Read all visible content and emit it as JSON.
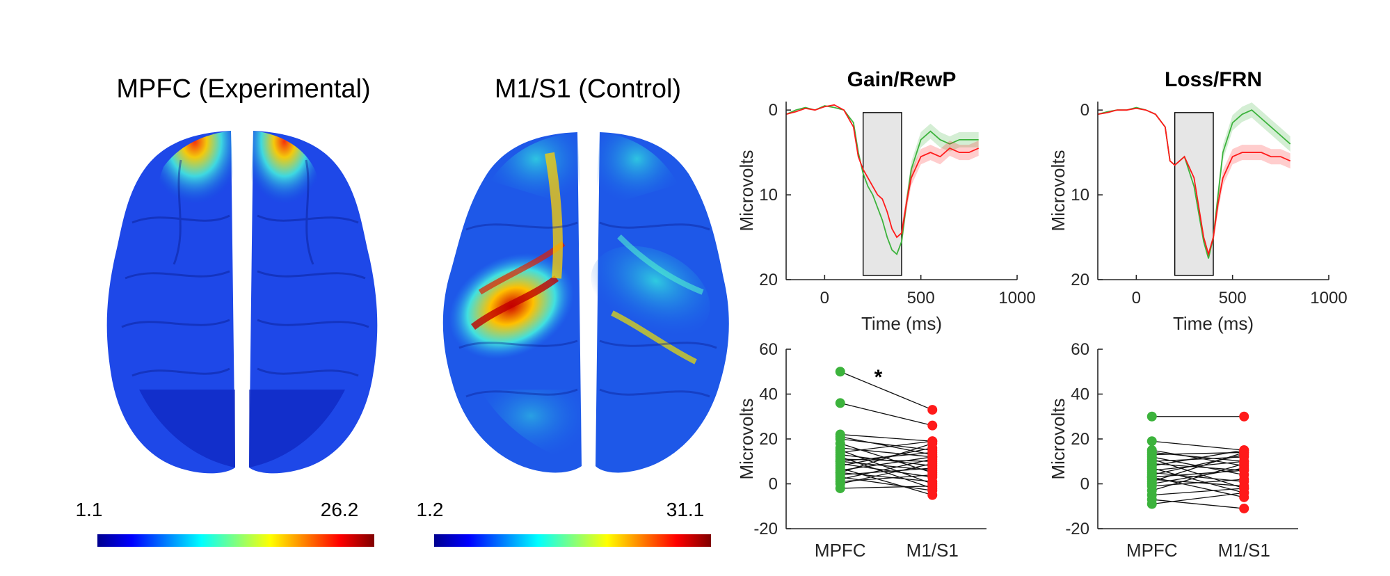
{
  "colors": {
    "mpfc": "#3cb33c",
    "m1s1": "#ff1a1a",
    "axis": "#262626",
    "window": "#e6e6e6"
  },
  "brain_maps": [
    {
      "title": "MPFC (Experimental)",
      "cmin": "1.1",
      "cmax": "26.2",
      "hotspot": "frontal-midline"
    },
    {
      "title": "M1/S1 (Control)",
      "cmin": "1.2",
      "cmax": "31.1",
      "hotspot": "left-central-sulcus"
    }
  ],
  "chart_data": [
    {
      "id": "gain_erp",
      "type": "line",
      "title": "Gain/RewP",
      "xlabel": "Time (ms)",
      "ylabel": "Microvolts",
      "xlim": [
        -200,
        1000
      ],
      "ylim": [
        20,
        -1
      ],
      "xticks": [
        0,
        500,
        1000
      ],
      "yticks": [
        0,
        10,
        20
      ],
      "window": [
        200,
        400
      ],
      "series": [
        {
          "name": "MPFC",
          "color": "#3cb33c",
          "x": [
            -200,
            -150,
            -100,
            -50,
            0,
            50,
            100,
            150,
            175,
            200,
            225,
            250,
            275,
            300,
            325,
            350,
            375,
            400,
            425,
            450,
            500,
            550,
            600,
            650,
            700,
            750,
            800
          ],
          "y": [
            0.5,
            0,
            -0.3,
            0,
            -0.5,
            -0.3,
            0,
            1.5,
            5,
            7.5,
            9,
            10,
            11.5,
            13,
            15,
            16.5,
            17,
            15.5,
            11,
            7,
            3.5,
            2.5,
            3.5,
            4,
            3.5,
            3.5,
            3.5
          ]
        },
        {
          "name": "M1/S1",
          "color": "#ff1a1a",
          "x": [
            -200,
            -150,
            -100,
            -50,
            0,
            50,
            100,
            150,
            175,
            200,
            225,
            250,
            275,
            300,
            325,
            350,
            375,
            400,
            425,
            450,
            500,
            550,
            600,
            650,
            700,
            750,
            800
          ],
          "y": [
            0.5,
            0.2,
            -0.2,
            0,
            -0.4,
            -0.6,
            0,
            2,
            5.5,
            7,
            8,
            9,
            10,
            10.5,
            12,
            14,
            15,
            14.5,
            11,
            8,
            5.5,
            5,
            5.5,
            4.5,
            5,
            5,
            4.5
          ]
        }
      ]
    },
    {
      "id": "loss_erp",
      "type": "line",
      "title": "Loss/FRN",
      "xlabel": "Time (ms)",
      "ylabel": "Microvolts",
      "xlim": [
        -200,
        1000
      ],
      "ylim": [
        20,
        -1
      ],
      "xticks": [
        0,
        500,
        1000
      ],
      "yticks": [
        0,
        10,
        20
      ],
      "window": [
        200,
        400
      ],
      "series": [
        {
          "name": "MPFC",
          "color": "#3cb33c",
          "x": [
            -200,
            -150,
            -100,
            -50,
            0,
            50,
            100,
            150,
            175,
            200,
            225,
            250,
            300,
            350,
            375,
            400,
            425,
            450,
            500,
            550,
            600,
            650,
            700,
            750,
            800
          ],
          "y": [
            0.5,
            0.2,
            0,
            0,
            -0.3,
            0,
            0.5,
            2,
            6,
            6.5,
            6,
            5.5,
            9,
            15.5,
            17.5,
            15,
            10,
            5,
            1.5,
            0.5,
            0,
            1,
            2,
            3,
            4
          ]
        },
        {
          "name": "M1/S1",
          "color": "#ff1a1a",
          "x": [
            -200,
            -150,
            -100,
            -50,
            0,
            50,
            100,
            150,
            175,
            200,
            225,
            250,
            300,
            350,
            375,
            400,
            425,
            450,
            500,
            550,
            600,
            650,
            700,
            750,
            800
          ],
          "y": [
            0.5,
            0.3,
            0,
            0,
            -0.2,
            0,
            0.5,
            2,
            6,
            6.5,
            6,
            5.5,
            8,
            15,
            17,
            15,
            11,
            8,
            5.5,
            5,
            5,
            5,
            5.5,
            5.5,
            6
          ]
        }
      ]
    },
    {
      "id": "gain_paired",
      "type": "scatter",
      "ylabel": "Microvolts",
      "ylim": [
        -20,
        60
      ],
      "yticks": [
        -20,
        0,
        20,
        40,
        60
      ],
      "categories": [
        "MPFC",
        "M1/S1"
      ],
      "annotation": "*",
      "pairs": [
        [
          50,
          33
        ],
        [
          36,
          26
        ],
        [
          22,
          19
        ],
        [
          20,
          15
        ],
        [
          18,
          5
        ],
        [
          16,
          12
        ],
        [
          15,
          0
        ],
        [
          14,
          19
        ],
        [
          13,
          8
        ],
        [
          12,
          -2
        ],
        [
          11,
          10
        ],
        [
          10,
          14
        ],
        [
          9,
          3
        ],
        [
          8,
          16
        ],
        [
          7,
          -5
        ],
        [
          6,
          12
        ],
        [
          5,
          1
        ],
        [
          4,
          7
        ],
        [
          3,
          -3
        ],
        [
          2,
          11
        ],
        [
          1,
          4
        ],
        [
          0,
          9
        ],
        [
          -2,
          -1
        ],
        [
          21,
          13
        ],
        [
          10,
          6
        ],
        [
          5,
          18
        ]
      ]
    },
    {
      "id": "loss_paired",
      "type": "scatter",
      "ylabel": "Microvolts",
      "ylim": [
        -20,
        60
      ],
      "yticks": [
        -20,
        0,
        20,
        40,
        60
      ],
      "categories": [
        "MPFC",
        "M1/S1"
      ],
      "pairs": [
        [
          30,
          30
        ],
        [
          19,
          15
        ],
        [
          15,
          8
        ],
        [
          13,
          14
        ],
        [
          12,
          4
        ],
        [
          11,
          -2
        ],
        [
          10,
          12
        ],
        [
          9,
          6
        ],
        [
          8,
          15
        ],
        [
          7,
          -4
        ],
        [
          6,
          10
        ],
        [
          5,
          1
        ],
        [
          4,
          13
        ],
        [
          3,
          6
        ],
        [
          2,
          -1
        ],
        [
          1,
          14
        ],
        [
          0,
          7
        ],
        [
          -1,
          2
        ],
        [
          -3,
          9
        ],
        [
          -5,
          -2
        ],
        [
          -7,
          -11
        ],
        [
          -9,
          -4
        ],
        [
          14,
          10
        ],
        [
          3,
          -6
        ]
      ]
    }
  ]
}
